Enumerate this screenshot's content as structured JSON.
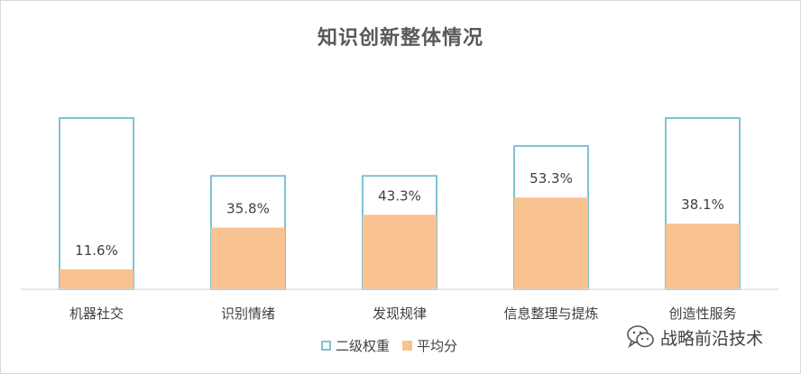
{
  "chart_data": {
    "type": "bar",
    "title": "知识创新整体情况",
    "categories": [
      "机器社交",
      "识别情绪",
      "发现规律",
      "信息整理与提炼",
      "创造性服务"
    ],
    "series": [
      {
        "name": "二级权重",
        "values": [
          100,
          66.4,
          66.4,
          83.8,
          100
        ],
        "style": "outline",
        "color": "#7fc3d3"
      },
      {
        "name": "平均分",
        "values": [
          11.6,
          35.8,
          43.3,
          53.3,
          38.1
        ],
        "style": "fill",
        "color": "#f8c291"
      }
    ],
    "data_labels": [
      "11.6%",
      "35.8%",
      "43.3%",
      "53.3%",
      "38.1%"
    ],
    "ylim": [
      0,
      100
    ],
    "grid": false,
    "legend_position": "bottom"
  },
  "watermark": {
    "text": "战略前沿技术",
    "icon": "wechat-icon"
  }
}
